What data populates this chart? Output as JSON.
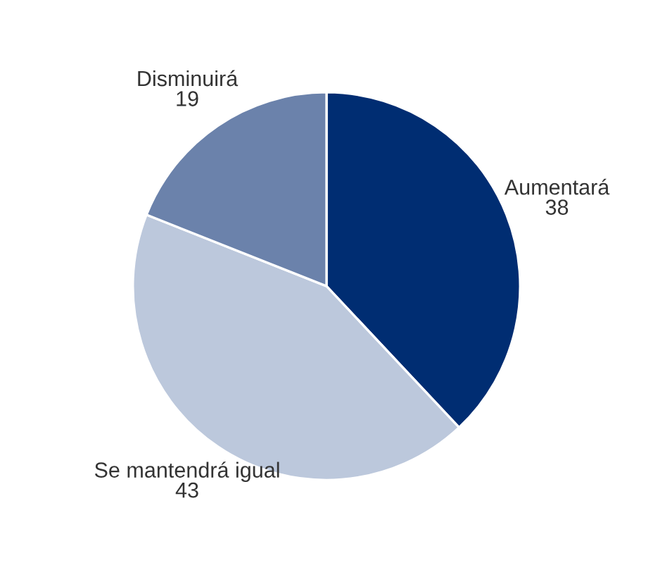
{
  "chart_data": {
    "type": "pie",
    "categories": [
      "Aumentará",
      "Se mantendrá igual",
      "Disminuirá"
    ],
    "values": [
      38,
      43,
      19
    ],
    "colors": [
      "#002d72",
      "#bcc8dc",
      "#6b82ab"
    ],
    "data_labels": true
  }
}
